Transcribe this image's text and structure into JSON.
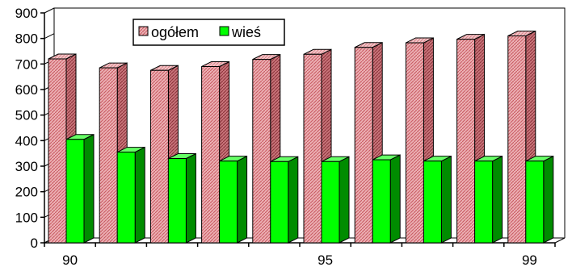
{
  "chart_data": {
    "type": "bar",
    "title": "",
    "xlabel": "",
    "ylabel": "",
    "ylim": [
      0,
      900
    ],
    "ytick_values": [
      0,
      100,
      200,
      300,
      400,
      500,
      600,
      700,
      800,
      900
    ],
    "ytick_labels": [
      "0",
      "100",
      "200",
      "300",
      "400",
      "500",
      "600",
      "700",
      "800",
      "900"
    ],
    "categories": [
      "90",
      "",
      "",
      "",
      "",
      "95",
      "",
      "",
      "",
      "99"
    ],
    "series": [
      {
        "name": "ogółem",
        "color": "#e89aa0",
        "values": [
          720,
          685,
          675,
          690,
          718,
          738,
          765,
          783,
          797,
          810
        ]
      },
      {
        "name": "wieś",
        "color": "#00ff00",
        "values": [
          405,
          355,
          330,
          320,
          318,
          318,
          325,
          320,
          320,
          320
        ]
      }
    ],
    "legend_position": "top",
    "grid": false,
    "bar_style": "3d"
  }
}
